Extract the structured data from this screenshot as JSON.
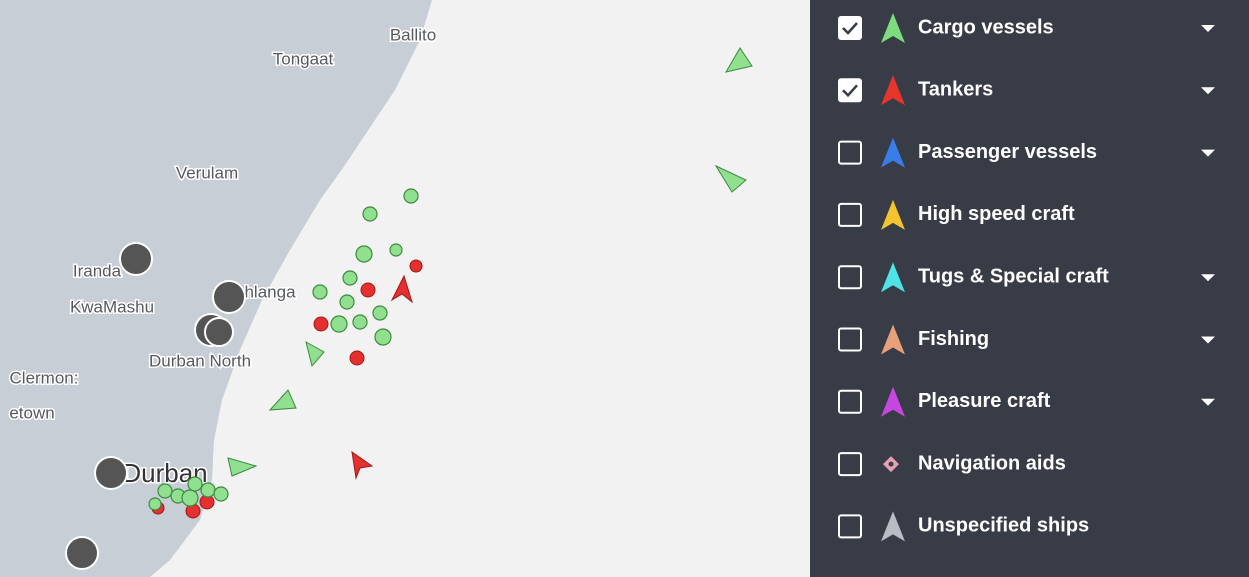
{
  "map": {
    "labels": [
      "Ballito",
      "Tongaat",
      "Verulam",
      "Iranda",
      "KwaMashu",
      "hlanga",
      "Durban North",
      "Clermon:",
      "etown",
      "Durban"
    ]
  },
  "legend": {
    "items": [
      {
        "label": "Cargo vessels",
        "checked": true,
        "dropdown": true,
        "color": "#7ddc7d",
        "shape": "arrow"
      },
      {
        "label": "Tankers",
        "checked": true,
        "dropdown": true,
        "color": "#e8352b",
        "shape": "arrow"
      },
      {
        "label": "Passenger vessels",
        "checked": false,
        "dropdown": true,
        "color": "#3b7de8",
        "shape": "arrow"
      },
      {
        "label": "High speed craft",
        "checked": false,
        "dropdown": false,
        "color": "#f4c430",
        "shape": "arrow"
      },
      {
        "label": "Tugs & Special craft",
        "checked": false,
        "dropdown": true,
        "color": "#4fe3e8",
        "shape": "arrow"
      },
      {
        "label": "Fishing",
        "checked": false,
        "dropdown": true,
        "color": "#e8a07a",
        "shape": "arrow"
      },
      {
        "label": "Pleasure craft",
        "checked": false,
        "dropdown": true,
        "color": "#c846e0",
        "shape": "arrow"
      },
      {
        "label": "Navigation aids",
        "checked": false,
        "dropdown": false,
        "color": "#e8a0b0",
        "shape": "diamond"
      },
      {
        "label": "Unspecified ships",
        "checked": false,
        "dropdown": false,
        "color": "#b8bcc4",
        "shape": "arrow"
      }
    ]
  }
}
